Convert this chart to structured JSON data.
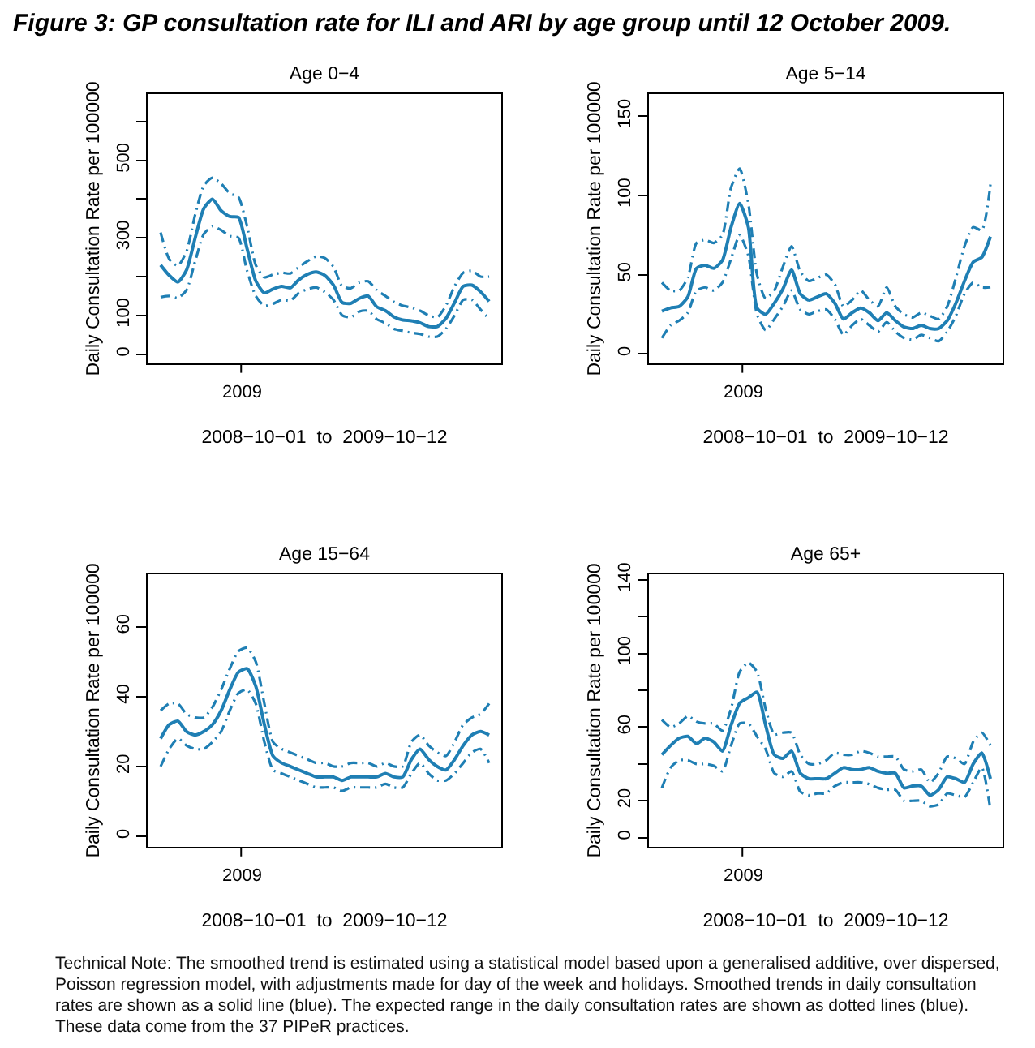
{
  "chart_data": [
    {
      "type": "other",
      "title": "Figure 3: GP consultation rate for ILI and ARI by age group until 12 October 2009."
    },
    {
      "type": "line",
      "title": "Age 0−4",
      "xlabel": "2008−10−01  to  2009−10−12",
      "ylabel": "Daily Consultation Rate per 100000",
      "annotations": [
        "2009"
      ],
      "categories": [
        null,
        null,
        null,
        null,
        null,
        null,
        null,
        null,
        null,
        null,
        null,
        null,
        null,
        null,
        null,
        null,
        null,
        null,
        null,
        null,
        null,
        null,
        null,
        null,
        null,
        null,
        null,
        null,
        null,
        null,
        null,
        null,
        null,
        null,
        null,
        null,
        null,
        null,
        null
      ],
      "ylim": [
        -24,
        671
      ],
      "yticks": [
        0,
        100,
        {
          "value": 200,
          "label": null
        },
        300,
        {
          "value": 400,
          "label": null
        },
        500,
        {
          "value": 600,
          "label": null
        }
      ],
      "series": [
        {
          "color": "#1f7fb4",
          "line_style": "solid",
          "values": [
            230,
            203,
            186,
            217,
            300,
            376,
            400,
            370,
            355,
            353,
            272,
            189,
            158,
            168,
            175,
            171,
            192,
            206,
            212,
            203,
            178,
            133,
            131,
            144,
            150,
            122,
            112,
            96,
            88,
            86,
            81,
            71,
            71,
            92,
            133,
            175,
            178,
            161,
            136
          ]
        },
        {
          "color": "#1f7fb4",
          "line_style": "dashed",
          "values": [
            314,
            245,
            228,
            265,
            360,
            435,
            455,
            440,
            415,
            405,
            330,
            230,
            198,
            205,
            210,
            208,
            225,
            240,
            252,
            248,
            225,
            175,
            170,
            185,
            188,
            165,
            150,
            135,
            125,
            120,
            112,
            100,
            95,
            125,
            175,
            210,
            215,
            200,
            200
          ]
        },
        {
          "color": "#1f7fb4",
          "line_style": "dashed",
          "values": [
            147,
            150,
            145,
            165,
            240,
            310,
            330,
            320,
            305,
            300,
            215,
            150,
            125,
            130,
            140,
            138,
            158,
            168,
            172,
            160,
            140,
            100,
            95,
            110,
            112,
            90,
            80,
            65,
            60,
            55,
            52,
            45,
            45,
            65,
            100,
            140,
            140,
            115,
            90
          ]
        }
      ]
    },
    {
      "type": "line",
      "title": "Age 5−14",
      "xlabel": "2008−10−01  to  2009−10−12",
      "ylabel": "Daily Consultation Rate per 100000",
      "annotations": [
        "2009"
      ],
      "categories": [
        null,
        null,
        null,
        null,
        null,
        null,
        null,
        null,
        null,
        null,
        null,
        null,
        null,
        null,
        null,
        null,
        null,
        null,
        null,
        null,
        null,
        null,
        null,
        null,
        null,
        null,
        null,
        null,
        null,
        null,
        null,
        null,
        null,
        null,
        null,
        null,
        null,
        null,
        null
      ],
      "ylim": [
        -6,
        164
      ],
      "yticks": [
        0,
        50,
        100,
        150
      ],
      "series": [
        {
          "color": "#1f7fb4",
          "line_style": "solid",
          "values": [
            27,
            29,
            30,
            36,
            54,
            56,
            54,
            59,
            80,
            95,
            80,
            29,
            25,
            32,
            41,
            53,
            38,
            34,
            36,
            38,
            32,
            22,
            26,
            29,
            26,
            21,
            26,
            21,
            17,
            16,
            18,
            16,
            16,
            21,
            32,
            46,
            58,
            61,
            74
          ]
        },
        {
          "color": "#1f7fb4",
          "line_style": "dashed",
          "values": [
            45,
            40,
            40,
            48,
            70,
            72,
            70,
            75,
            105,
            117,
            95,
            50,
            35,
            40,
            55,
            68,
            52,
            46,
            48,
            50,
            44,
            30,
            34,
            40,
            34,
            30,
            42,
            30,
            25,
            23,
            26,
            24,
            22,
            30,
            48,
            68,
            80,
            78,
            107
          ]
        },
        {
          "color": "#1f7fb4",
          "line_style": "dashed",
          "values": [
            10,
            18,
            21,
            26,
            40,
            42,
            40,
            45,
            60,
            75,
            62,
            25,
            15,
            22,
            30,
            40,
            28,
            25,
            27,
            28,
            22,
            12,
            18,
            22,
            18,
            14,
            20,
            14,
            10,
            9,
            12,
            10,
            8,
            14,
            24,
            38,
            45,
            42,
            42
          ]
        }
      ]
    },
    {
      "type": "line",
      "title": "Age 15−64",
      "xlabel": "2008−10−01  to  2009−10−12",
      "ylabel": "Daily Consultation Rate per 100000",
      "annotations": [
        "2009"
      ],
      "categories": [
        null,
        null,
        null,
        null,
        null,
        null,
        null,
        null,
        null,
        null,
        null,
        null,
        null,
        null,
        null,
        null,
        null,
        null,
        null,
        null,
        null,
        null,
        null,
        null,
        null,
        null,
        null,
        null,
        null,
        null,
        null,
        null,
        null,
        null,
        null,
        null,
        null,
        null,
        null
      ],
      "ylim": [
        -3,
        75
      ],
      "yticks": [
        0,
        20,
        40,
        60
      ],
      "series": [
        {
          "color": "#1f7fb4",
          "line_style": "solid",
          "values": [
            28,
            32,
            33,
            30,
            29,
            30,
            32,
            36,
            42,
            47,
            48,
            43,
            32,
            23,
            21,
            20,
            19,
            18,
            17,
            17,
            17,
            16,
            17,
            17,
            17,
            17,
            18,
            17,
            17,
            22,
            25,
            22,
            20,
            19,
            22,
            26,
            29,
            30,
            29
          ]
        },
        {
          "color": "#1f7fb4",
          "line_style": "dashed",
          "values": [
            36,
            38,
            38,
            35,
            34,
            34,
            37,
            42,
            48,
            53,
            54,
            50,
            38,
            27,
            25,
            24,
            23,
            22,
            21,
            21,
            20,
            20,
            21,
            21,
            21,
            20,
            21,
            20,
            20,
            27,
            29,
            26,
            24,
            23,
            27,
            32,
            34,
            35,
            38
          ]
        },
        {
          "color": "#1f7fb4",
          "line_style": "dashed",
          "values": [
            20,
            25,
            28,
            26,
            25,
            25,
            27,
            30,
            36,
            41,
            42,
            38,
            27,
            19,
            18,
            17,
            16,
            15,
            14,
            14,
            14,
            13,
            14,
            14,
            14,
            14,
            15,
            14,
            14,
            18,
            21,
            18,
            16,
            16,
            18,
            21,
            24,
            25,
            21
          ]
        }
      ]
    },
    {
      "type": "line",
      "title": "Age 65+",
      "xlabel": "2008−10−01  to  2009−10−12",
      "ylabel": "Daily Consultation Rate per 100000",
      "annotations": [
        "2009"
      ],
      "categories": [
        null,
        null,
        null,
        null,
        null,
        null,
        null,
        null,
        null,
        null,
        null,
        null,
        null,
        null,
        null,
        null,
        null,
        null,
        null,
        null,
        null,
        null,
        null,
        null,
        null,
        null,
        null,
        null,
        null,
        null,
        null,
        null,
        null,
        null,
        null,
        null,
        null,
        null,
        null
      ],
      "ylim": [
        -5,
        143
      ],
      "yticks": [
        0,
        20,
        {
          "value": 40,
          "label": null
        },
        60,
        {
          "value": 80,
          "label": null
        },
        100,
        {
          "value": 120,
          "label": null
        },
        140
      ],
      "series": [
        {
          "color": "#1f7fb4",
          "line_style": "solid",
          "values": [
            45,
            50,
            54,
            55,
            51,
            54,
            52,
            47,
            61,
            73,
            76,
            79,
            61,
            45,
            43,
            47,
            35,
            32,
            32,
            32,
            35,
            38,
            37,
            37,
            38,
            36,
            35,
            35,
            27,
            28,
            28,
            23,
            26,
            33,
            32,
            30,
            40,
            46,
            32
          ]
        },
        {
          "color": "#1f7fb4",
          "line_style": "dashed",
          "values": [
            64,
            60,
            62,
            66,
            63,
            62,
            62,
            58,
            70,
            90,
            95,
            90,
            70,
            56,
            57,
            57,
            45,
            40,
            40,
            42,
            46,
            45,
            45,
            47,
            46,
            44,
            44,
            44,
            37,
            36,
            37,
            30,
            35,
            44,
            43,
            40,
            52,
            57,
            50
          ]
        },
        {
          "color": "#1f7fb4",
          "line_style": "dashed",
          "values": [
            27,
            38,
            42,
            42,
            40,
            40,
            39,
            36,
            50,
            62,
            62,
            55,
            48,
            35,
            33,
            36,
            25,
            23,
            24,
            24,
            28,
            30,
            30,
            30,
            29,
            27,
            26,
            26,
            20,
            20,
            20,
            17,
            18,
            24,
            23,
            22,
            30,
            38,
            15
          ]
        }
      ]
    },
    {
      "type": "other",
      "annotations": [
        "Technical Note: The smoothed trend is estimated using a statistical model based upon a generalised additive, over dispersed, Poisson regression model, with adjustments made for day of the week and holidays. Smoothed trends in daily consultation rates are shown as a solid line (blue). The expected range in the daily consultation rates are shown as dotted lines (blue). These data come from the 37 PIPeR practices."
      ]
    }
  ]
}
